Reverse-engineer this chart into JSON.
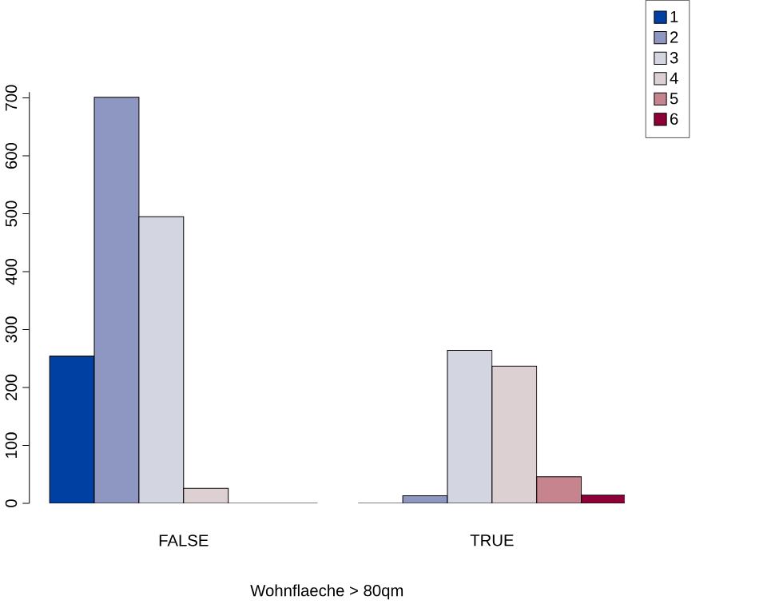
{
  "chart_data": {
    "type": "bar",
    "xlabel": "Wohnflaeche > 80qm",
    "categories": [
      "FALSE",
      "TRUE"
    ],
    "series": [
      {
        "name": "1",
        "color": "#0040a3",
        "values": [
          254,
          0
        ]
      },
      {
        "name": "2",
        "color": "#8e96c2",
        "values": [
          701,
          13
        ]
      },
      {
        "name": "3",
        "color": "#d3d5e0",
        "values": [
          495,
          264
        ]
      },
      {
        "name": "4",
        "color": "#ddd0d3",
        "values": [
          26,
          237
        ]
      },
      {
        "name": "5",
        "color": "#c6848e",
        "values": [
          0,
          46
        ]
      },
      {
        "name": "6",
        "color": "#8e0038",
        "values": [
          0,
          14
        ]
      }
    ],
    "ylim": [
      0,
      710
    ],
    "yticks": [
      0,
      100,
      200,
      300,
      400,
      500,
      600,
      700
    ],
    "legend": "top right",
    "grid": false
  }
}
